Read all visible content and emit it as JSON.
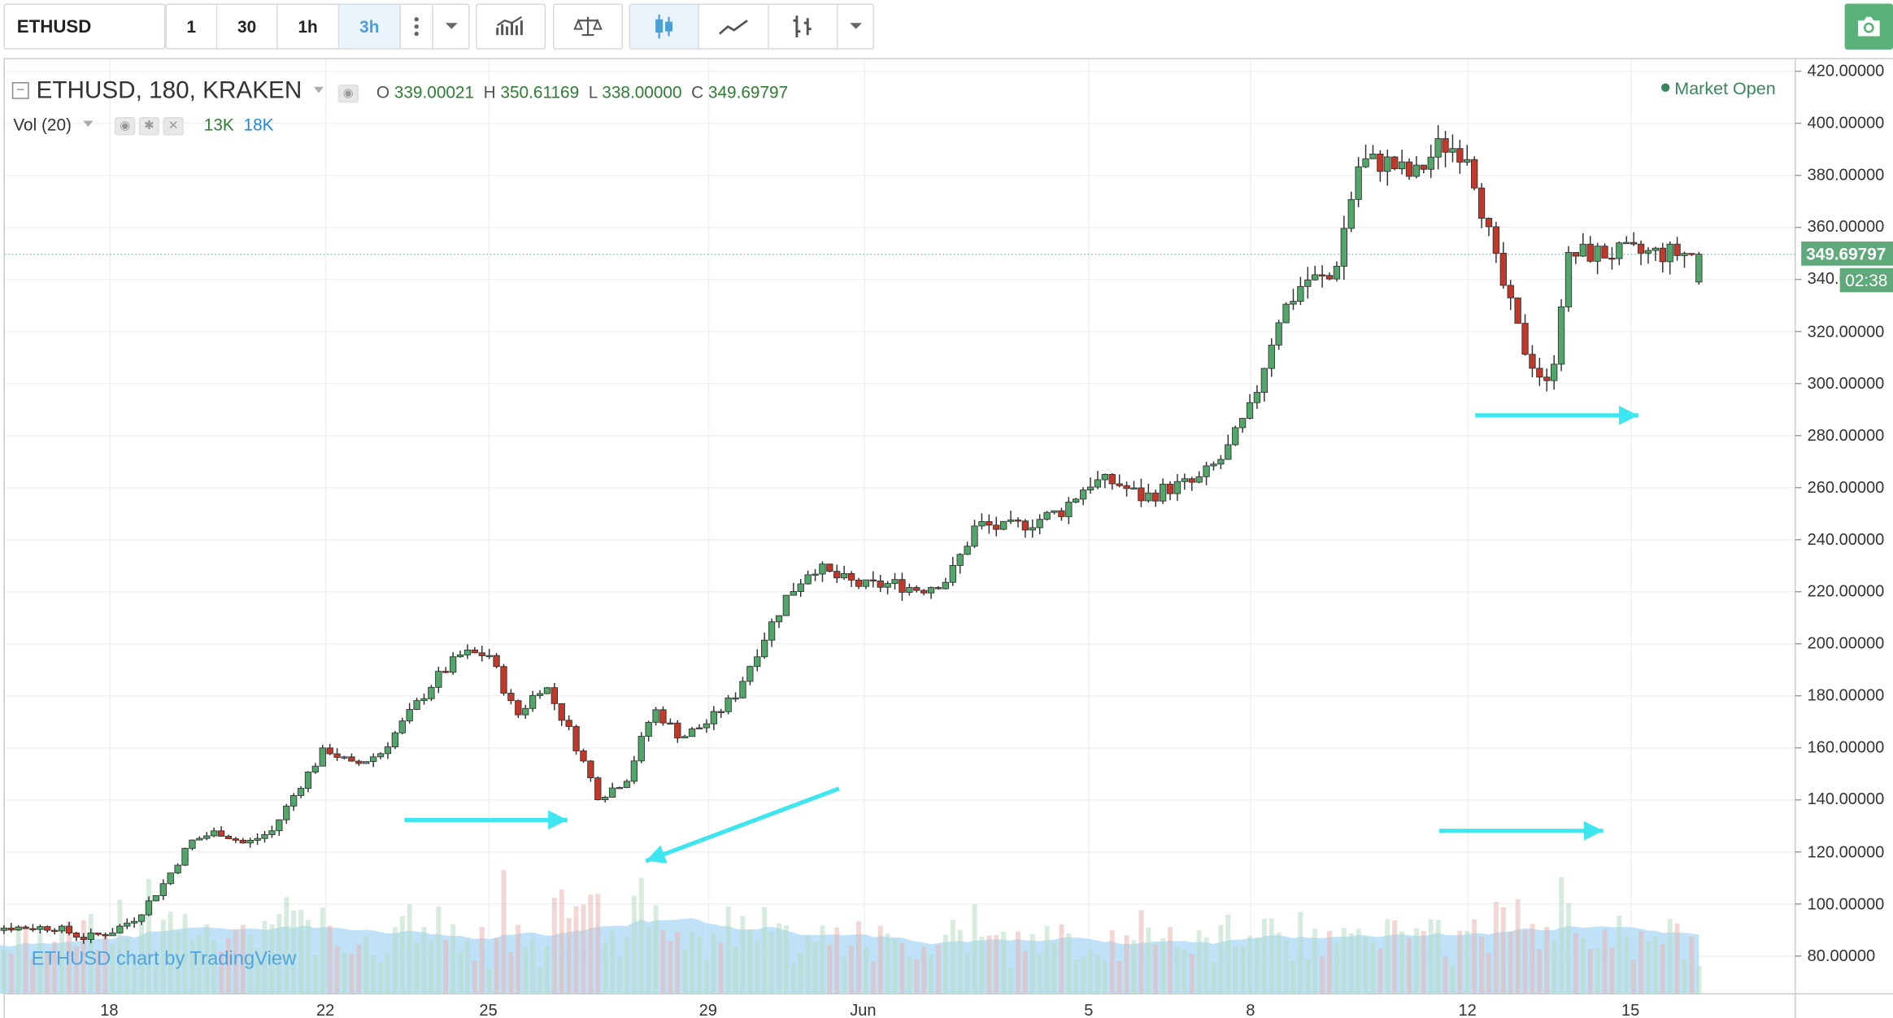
{
  "toolbar": {
    "symbol": "ETHUSD",
    "intervals": [
      "1",
      "30",
      "1h",
      "3h"
    ],
    "active_interval": "3h"
  },
  "legend": {
    "title": "ETHUSD, 180, KRAKEN",
    "o_label": "O",
    "o_value": "339.00021",
    "h_label": "H",
    "h_value": "350.61169",
    "l_label": "L",
    "l_value": "338.00000",
    "c_label": "C",
    "c_value": "349.69797"
  },
  "volume_legend": {
    "label": "Vol (20)",
    "v1": "13K",
    "v2": "18K"
  },
  "market_status": "Market Open",
  "last_price": "349.69797",
  "countdown": "02:38",
  "watermark": "ETHUSD chart by TradingView",
  "chart_data": {
    "type": "candlestick",
    "price_axis": [
      "420.00000",
      "400.00000",
      "380.00000",
      "360.00000",
      "340.00000",
      "320.00000",
      "300.00000",
      "280.00000",
      "260.00000",
      "240.00000",
      "220.00000",
      "200.00000",
      "180.00000",
      "160.00000",
      "140.00000",
      "120.00000",
      "100.00000",
      "80.00000"
    ],
    "time_axis": [
      "18",
      "22",
      "25",
      "29",
      "Jun",
      "5",
      "8",
      "12",
      "15"
    ],
    "ylim": [
      70,
      422
    ],
    "colors": {
      "up": "#53a66a",
      "down": "#c0392b",
      "vol_ma": "#a9d8f5"
    },
    "close_path": [
      [
        17.0,
        91
      ],
      [
        17.5,
        87
      ],
      [
        18.0,
        89
      ],
      [
        18.5,
        95
      ],
      [
        19.0,
        108
      ],
      [
        19.5,
        124
      ],
      [
        20.0,
        128
      ],
      [
        20.5,
        123
      ],
      [
        21.0,
        128
      ],
      [
        21.5,
        145
      ],
      [
        22.0,
        160
      ],
      [
        22.5,
        153
      ],
      [
        23.0,
        158
      ],
      [
        23.5,
        172
      ],
      [
        24.0,
        186
      ],
      [
        24.5,
        196
      ],
      [
        25.0,
        196
      ],
      [
        25.5,
        172
      ],
      [
        26.0,
        185
      ],
      [
        26.5,
        165
      ],
      [
        27.0,
        141
      ],
      [
        27.5,
        148
      ],
      [
        28.0,
        175
      ],
      [
        28.5,
        164
      ],
      [
        29.0,
        170
      ],
      [
        29.5,
        180
      ],
      [
        30.0,
        200
      ],
      [
        30.5,
        218
      ],
      [
        31.0,
        230
      ],
      [
        31.5,
        225
      ],
      [
        32.0,
        222
      ],
      [
        32.5,
        223
      ],
      [
        33.0,
        221
      ],
      [
        33.5,
        225
      ],
      [
        34.0,
        246
      ],
      [
        34.5,
        244
      ],
      [
        35.0,
        247
      ],
      [
        35.5,
        251
      ],
      [
        36.0,
        262
      ],
      [
        36.5,
        262
      ],
      [
        37.0,
        256
      ],
      [
        37.5,
        260
      ],
      [
        38.0,
        262
      ],
      [
        38.5,
        272
      ],
      [
        39.0,
        290
      ],
      [
        39.5,
        325
      ],
      [
        40.0,
        340
      ],
      [
        40.5,
        340
      ],
      [
        41.0,
        385
      ],
      [
        41.5,
        385
      ],
      [
        42.0,
        379
      ],
      [
        42.5,
        392
      ],
      [
        43.0,
        389
      ],
      [
        43.5,
        347
      ],
      [
        44.0,
        315
      ],
      [
        44.5,
        297
      ],
      [
        44.8,
        346
      ],
      [
        45.0,
        350
      ]
    ],
    "annotations": [
      "arrow-1",
      "arrow-2",
      "arrow-3",
      "arrow-4"
    ]
  }
}
